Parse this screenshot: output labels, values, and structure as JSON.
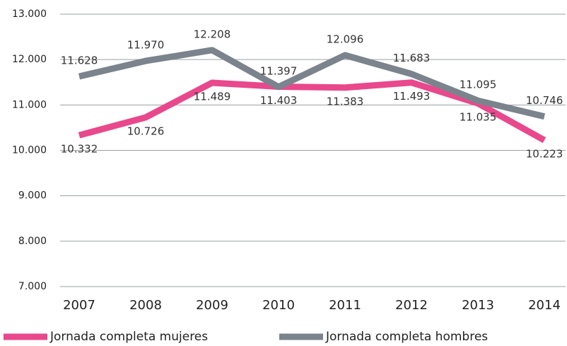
{
  "chart_data": {
    "type": "line",
    "categories": [
      "2007",
      "2008",
      "2009",
      "2010",
      "2011",
      "2012",
      "2013",
      "2014"
    ],
    "series": [
      {
        "name": "Jornada completa mujeres",
        "color": "#e9488c",
        "values": [
          10332,
          10726,
          11489,
          11403,
          11383,
          11493,
          11035,
          10223
        ],
        "value_labels": [
          "10.332",
          "10.726",
          "11.489",
          "11.403",
          "11.383",
          "11.493",
          "11.035",
          "10.223"
        ]
      },
      {
        "name": "Jornada completa hombres",
        "color": "#7b838d",
        "values": [
          11628,
          11970,
          12208,
          11397,
          12096,
          11683,
          11095,
          10746
        ],
        "value_labels": [
          "11.628",
          "11.970",
          "12.208",
          "11.397",
          "12.096",
          "11.683",
          "11.095",
          "10.746"
        ]
      }
    ],
    "ylim": [
      7000,
      13000
    ],
    "yticks": [
      {
        "value": 7000,
        "label": "7.000"
      },
      {
        "value": 8000,
        "label": "8.000"
      },
      {
        "value": 9000,
        "label": "9.000"
      },
      {
        "value": 10000,
        "label": "10.000"
      },
      {
        "value": 11000,
        "label": "11.000"
      },
      {
        "value": 12000,
        "label": "12.000"
      },
      {
        "value": 13000,
        "label": "13.000"
      }
    ],
    "grid": true,
    "legend": "bottom"
  }
}
